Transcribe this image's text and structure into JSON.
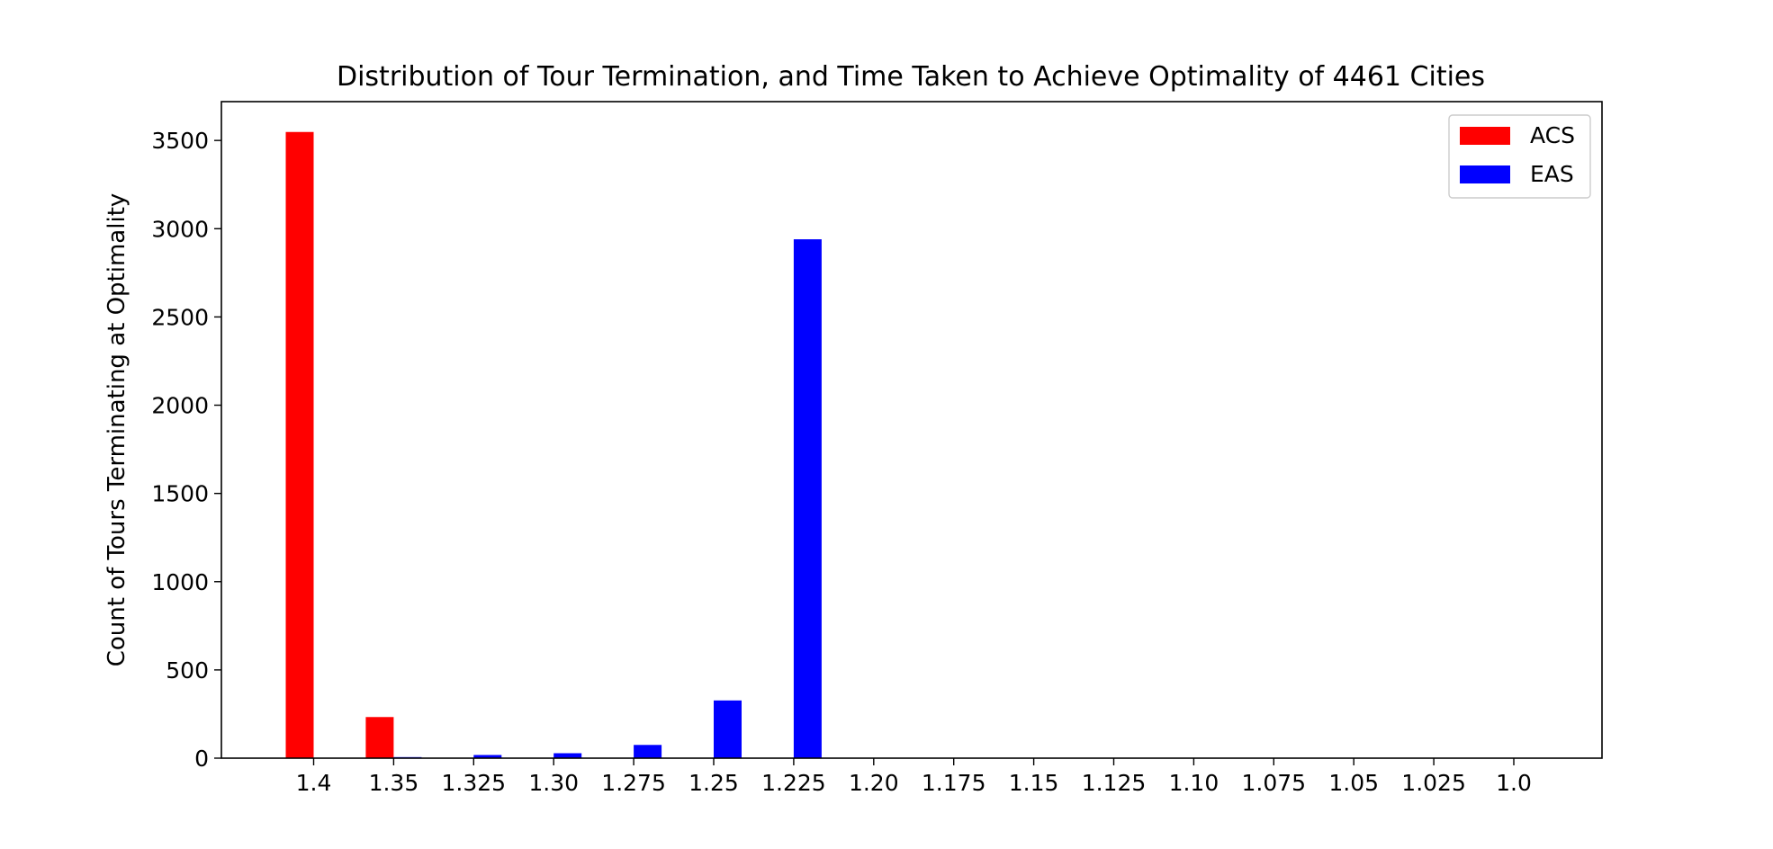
{
  "chart_data": {
    "type": "bar",
    "title": "Distribution of Tour Termination, and Time Taken to Achieve Optimality of 4461 Cities",
    "xlabel": "",
    "ylabel": "Count of Tours Terminating at Optimality",
    "categories": [
      "1.4",
      "1.35",
      "1.325",
      "1.30",
      "1.275",
      "1.25",
      "1.225",
      "1.20",
      "1.175",
      "1.15",
      "1.125",
      "1.10",
      "1.075",
      "1.05",
      "1.025",
      "1.0"
    ],
    "series": [
      {
        "name": "ACS",
        "color": "#ff0000",
        "values": [
          3548,
          233,
          0,
          0,
          0,
          0,
          0,
          0,
          0,
          0,
          0,
          0,
          0,
          0,
          0,
          0
        ]
      },
      {
        "name": "EAS",
        "color": "#0000ff",
        "values": [
          0,
          6,
          18,
          28,
          75,
          327,
          2940,
          0,
          0,
          0,
          0,
          0,
          0,
          0,
          0,
          0
        ]
      }
    ],
    "ylim": [
      0,
      3720
    ],
    "yticks": [
      0,
      500,
      1000,
      1500,
      2000,
      2500,
      3000,
      3500
    ],
    "ytick_labels": [
      "0",
      "500",
      "1000",
      "1500",
      "2000",
      "2500",
      "3000",
      "3500"
    ],
    "grid": false,
    "legend": "top-right"
  }
}
